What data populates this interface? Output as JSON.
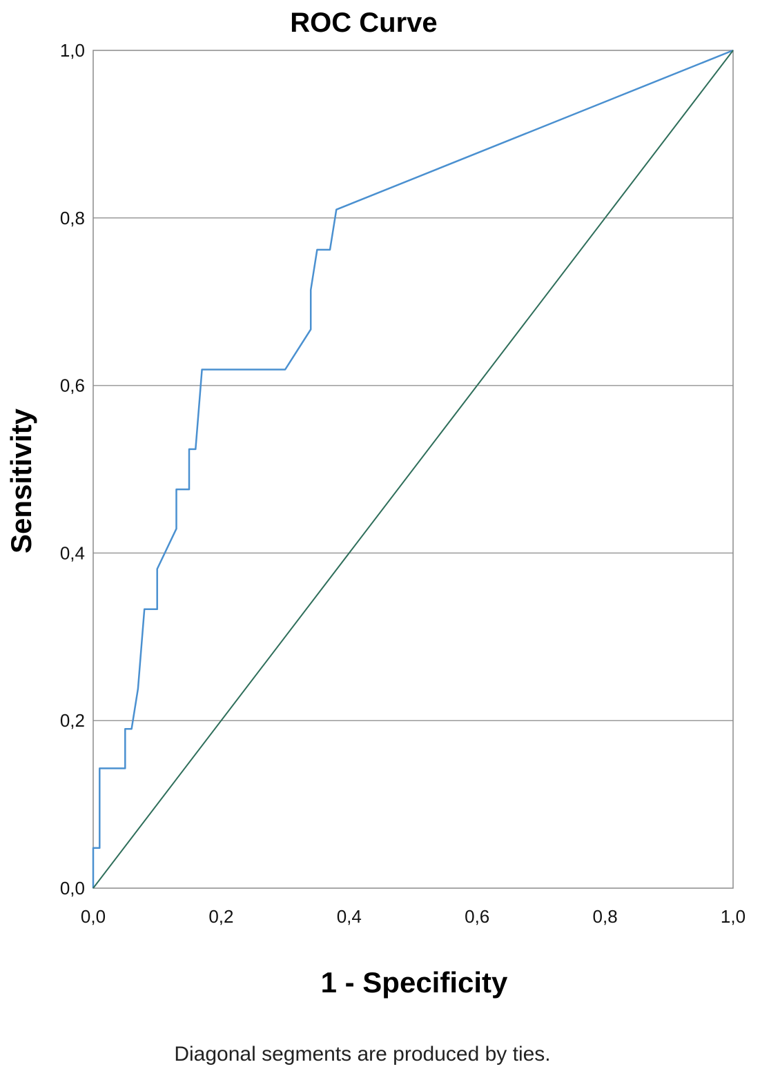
{
  "chart_data": {
    "type": "line",
    "title": "ROC Curve",
    "xlabel": "1 - Specificity",
    "ylabel": "Sensitivity",
    "xlim": [
      0,
      1
    ],
    "ylim": [
      0,
      1
    ],
    "x_ticks": [
      "0,0",
      "0,2",
      "0,4",
      "0,6",
      "0,8",
      "1,0"
    ],
    "y_ticks": [
      "0,0",
      "0,2",
      "0,4",
      "0,6",
      "0,8",
      "1,0"
    ],
    "tick_values": [
      0,
      0.2,
      0.4,
      0.6,
      0.8,
      1.0
    ],
    "grid": "horizontal",
    "footnote": "Diagonal segments are produced by ties.",
    "series": [
      {
        "color": "#4a90d0",
        "x": [
          0.0,
          0.0,
          0.01,
          0.01,
          0.05,
          0.05,
          0.06,
          0.07,
          0.08,
          0.1,
          0.1,
          0.13,
          0.13,
          0.15,
          0.15,
          0.16,
          0.17,
          0.3,
          0.34,
          0.34,
          0.35,
          0.37,
          0.38,
          1.0
        ],
        "y": [
          0.0,
          0.048,
          0.048,
          0.143,
          0.143,
          0.19,
          0.19,
          0.238,
          0.333,
          0.333,
          0.381,
          0.429,
          0.476,
          0.476,
          0.524,
          0.524,
          0.619,
          0.619,
          0.667,
          0.714,
          0.762,
          0.762,
          0.81,
          1.0
        ]
      },
      {
        "color": "#2e6e5a",
        "x": [
          0.0,
          1.0
        ],
        "y": [
          0.0,
          1.0
        ]
      }
    ]
  }
}
